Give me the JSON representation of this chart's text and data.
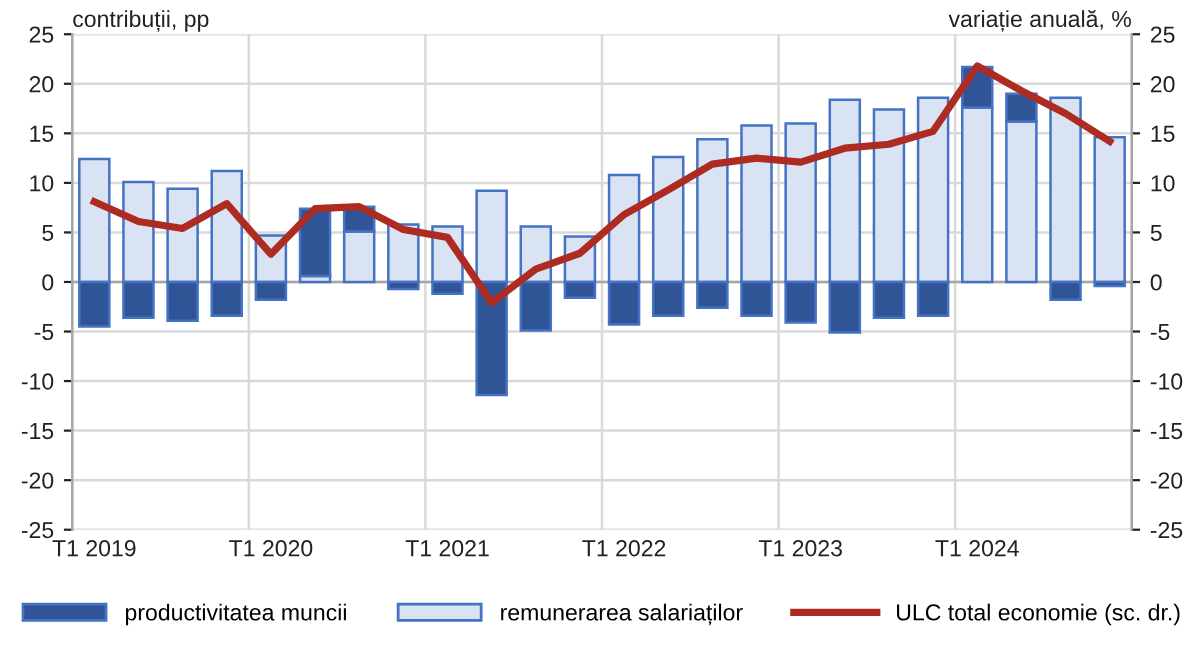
{
  "chart_data": {
    "type": "bar",
    "stacked": true,
    "ylabel": "contribuții, pp",
    "y2label": "variație anuală, %",
    "categories": [
      "T1 2019",
      null,
      null,
      null,
      "T1 2020",
      null,
      null,
      null,
      "T1 2021",
      null,
      null,
      null,
      "T1 2022",
      null,
      null,
      null,
      "T1 2023",
      null,
      null,
      null,
      "T1 2024",
      null,
      null,
      null
    ],
    "series": [
      {
        "name": "remunerarea salariaților",
        "color": "#dae3f3",
        "values": [
          12.4,
          10.1,
          9.4,
          11.2,
          4.7,
          0.6,
          5.1,
          5.8,
          5.6,
          9.2,
          5.6,
          4.6,
          10.8,
          12.6,
          14.4,
          15.8,
          16.0,
          18.4,
          17.4,
          18.6,
          17.6,
          16.2,
          18.6,
          14.6
        ]
      },
      {
        "name": "productivitatea muncii",
        "color": "#2f5597",
        "values": [
          -4.5,
          -3.6,
          -3.9,
          -3.4,
          -1.8,
          6.8,
          2.5,
          -0.7,
          -1.2,
          -11.4,
          -4.9,
          -1.6,
          -4.3,
          -3.4,
          -2.6,
          -3.4,
          -4.1,
          -5.1,
          -3.6,
          -3.4,
          4.1,
          2.8,
          -1.8,
          -0.4
        ]
      },
      {
        "name": "ULC total economie (sc. dr.)",
        "type": "line",
        "axis": "y2",
        "color": "#ae2b22",
        "values": [
          8.1,
          6.1,
          5.4,
          7.9,
          2.8,
          7.4,
          7.6,
          5.3,
          4.5,
          -2.1,
          1.3,
          2.9,
          6.8,
          9.3,
          11.9,
          12.5,
          12.1,
          13.5,
          13.9,
          15.2,
          21.8,
          19.3,
          17.0,
          14.2
        ]
      }
    ],
    "ylim": [
      -25,
      25
    ],
    "yticks": [
      -25,
      -20,
      -15,
      -10,
      -5,
      0,
      5,
      10,
      15,
      20,
      25
    ],
    "y2lim": [
      -25,
      25
    ],
    "y2ticks": [
      -25,
      -20,
      -15,
      -10,
      -5,
      0,
      5,
      10,
      15,
      20,
      25
    ],
    "grid": true,
    "legend": "bottom",
    "marker": "none",
    "line_style": "solid"
  }
}
